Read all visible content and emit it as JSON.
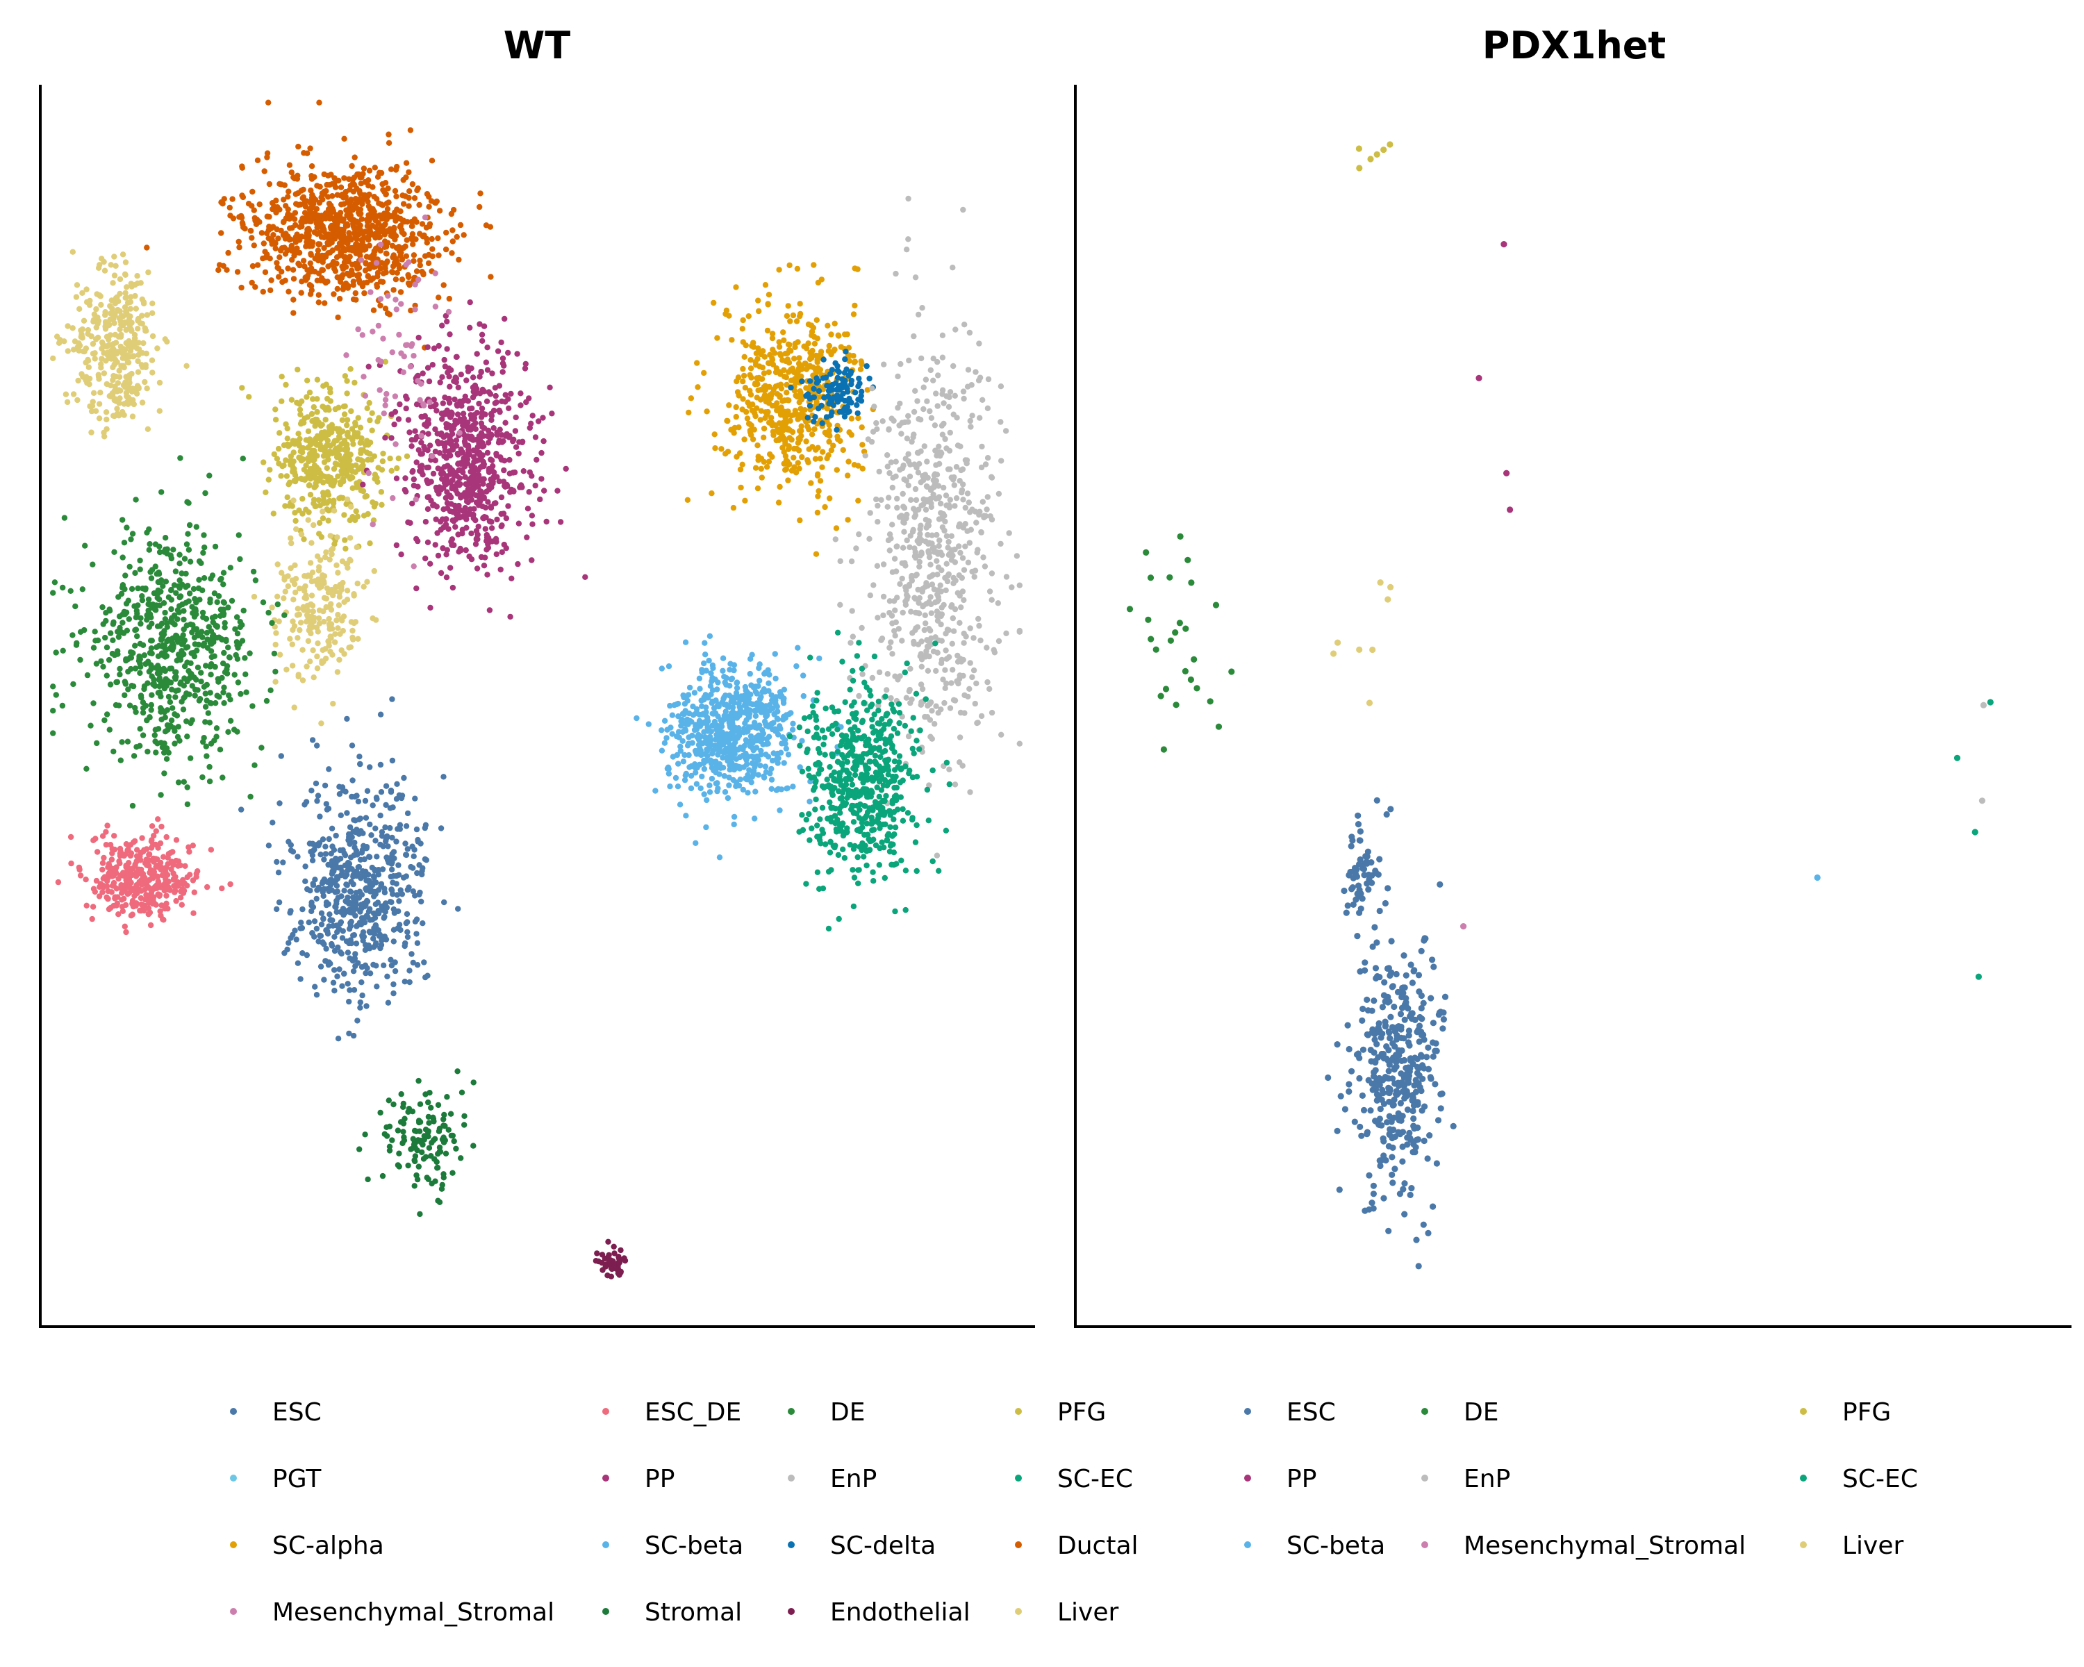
{
  "chart_data": [
    {
      "type": "scatter",
      "title": "WT",
      "xlabel": "",
      "ylabel": "",
      "grid": false,
      "legend_position": "bottom",
      "legend": [
        "ESC",
        "PGT",
        "SC-alpha",
        "Mesenchymal_Stromal",
        "ESC_DE",
        "PP",
        "SC-beta",
        "Stromal",
        "DE",
        "EnP",
        "SC-delta",
        "Endothelial",
        "PFG",
        "SC-EC",
        "Ductal",
        "Liver"
      ],
      "colors": {
        "ESC": "#4a78a8",
        "PGT": "#6cc7e6",
        "SC-alpha": "#e3a005",
        "Mesenchymal_Stromal": "#cc7fae",
        "ESC_DE": "#ee6a7c",
        "PP": "#a8357a",
        "SC-beta": "#5ab3e8",
        "Stromal": "#1c7a3a",
        "DE": "#2a8a3a",
        "EnP": "#bcbcbc",
        "SC-delta": "#0a72b2",
        "Endothelial": "#7c1e50",
        "PFG": "#cdbd45",
        "SC-EC": "#0aa57a",
        "Ductal": "#d65c00",
        "Liver": "#e0cd78"
      },
      "clusters": [
        {
          "type": "Ductal",
          "cx": 0.305,
          "cy": 0.115,
          "sx": 0.09,
          "sy": 0.05,
          "n": 900
        },
        {
          "type": "Liver",
          "cx": 0.075,
          "cy": 0.21,
          "sx": 0.04,
          "sy": 0.06,
          "n": 350
        },
        {
          "type": "PFG",
          "cx": 0.29,
          "cy": 0.3,
          "sx": 0.05,
          "sy": 0.05,
          "n": 450
        },
        {
          "type": "Liver",
          "cx": 0.28,
          "cy": 0.42,
          "sx": 0.04,
          "sy": 0.06,
          "n": 220
        },
        {
          "type": "PP",
          "cx": 0.43,
          "cy": 0.3,
          "sx": 0.06,
          "sy": 0.08,
          "n": 700
        },
        {
          "type": "DE",
          "cx": 0.13,
          "cy": 0.45,
          "sx": 0.08,
          "sy": 0.08,
          "n": 650
        },
        {
          "type": "ESC",
          "cx": 0.32,
          "cy": 0.65,
          "sx": 0.06,
          "sy": 0.08,
          "n": 600
        },
        {
          "type": "ESC_DE",
          "cx": 0.1,
          "cy": 0.64,
          "sx": 0.05,
          "sy": 0.03,
          "n": 350
        },
        {
          "type": "Stromal",
          "cx": 0.385,
          "cy": 0.855,
          "sx": 0.04,
          "sy": 0.035,
          "n": 130
        },
        {
          "type": "Endothelial",
          "cx": 0.58,
          "cy": 0.955,
          "sx": 0.015,
          "sy": 0.012,
          "n": 45
        },
        {
          "type": "SC-alpha",
          "cx": 0.76,
          "cy": 0.25,
          "sx": 0.06,
          "sy": 0.07,
          "n": 550
        },
        {
          "type": "SC-delta",
          "cx": 0.805,
          "cy": 0.245,
          "sx": 0.03,
          "sy": 0.025,
          "n": 110
        },
        {
          "type": "EnP",
          "cx": 0.9,
          "cy": 0.38,
          "sx": 0.06,
          "sy": 0.15,
          "n": 650
        },
        {
          "type": "SC-beta",
          "cx": 0.7,
          "cy": 0.52,
          "sx": 0.06,
          "sy": 0.05,
          "n": 650
        },
        {
          "type": "SC-EC",
          "cx": 0.83,
          "cy": 0.56,
          "sx": 0.05,
          "sy": 0.07,
          "n": 550
        },
        {
          "type": "Mesenchymal_Stromal",
          "cx": 0.36,
          "cy": 0.24,
          "sx": 0.04,
          "sy": 0.12,
          "n": 60
        }
      ]
    },
    {
      "type": "scatter",
      "title": "PDX1het",
      "xlabel": "",
      "ylabel": "",
      "grid": false,
      "legend_position": "bottom",
      "legend": [
        "ESC",
        "PP",
        "SC-beta",
        "DE",
        "EnP",
        "Mesenchymal_Stromal",
        "PFG",
        "SC-EC",
        "Liver"
      ],
      "colors": {
        "ESC": "#4a78a8",
        "PP": "#a8357a",
        "SC-beta": "#5ab3e8",
        "DE": "#2a8a3a",
        "EnP": "#bcbcbc",
        "Mesenchymal_Stromal": "#cc7fae",
        "PFG": "#cdbd45",
        "SC-EC": "#0aa57a",
        "Liver": "#e0cd78"
      },
      "clusters": [
        {
          "type": "ESC",
          "cx": 0.325,
          "cy": 0.8,
          "sx": 0.04,
          "sy": 0.09,
          "n": 380
        },
        {
          "type": "ESC",
          "cx": 0.29,
          "cy": 0.64,
          "sx": 0.02,
          "sy": 0.04,
          "n": 60
        },
        {
          "type": "DE",
          "cx": 0.1,
          "cy": 0.45,
          "sx": 0.05,
          "sy": 0.09,
          "n": 26
        },
        {
          "type": "PFG",
          "cx": 0.3,
          "cy": 0.05,
          "sx": 0.02,
          "sy": 0.025,
          "n": 6
        },
        {
          "type": "Liver",
          "cx": 0.32,
          "cy": 0.43,
          "sx": 0.05,
          "sy": 0.1,
          "n": 8
        },
        {
          "type": "PP",
          "cx": 0.43,
          "cy": 0.17,
          "sx": 0.03,
          "sy": 0.25,
          "n": 4
        },
        {
          "type": "SC-EC",
          "cx": 0.91,
          "cy": 0.6,
          "sx": 0.02,
          "sy": 0.12,
          "n": 4
        },
        {
          "type": "EnP",
          "cx": 0.92,
          "cy": 0.53,
          "sx": 0.01,
          "sy": 0.07,
          "n": 2
        },
        {
          "type": "SC-beta",
          "cx": 0.75,
          "cy": 0.64,
          "sx": 0.003,
          "sy": 0.003,
          "n": 1
        },
        {
          "type": "Mesenchymal_Stromal",
          "cx": 0.39,
          "cy": 0.68,
          "sx": 0.003,
          "sy": 0.003,
          "n": 1
        }
      ]
    }
  ]
}
